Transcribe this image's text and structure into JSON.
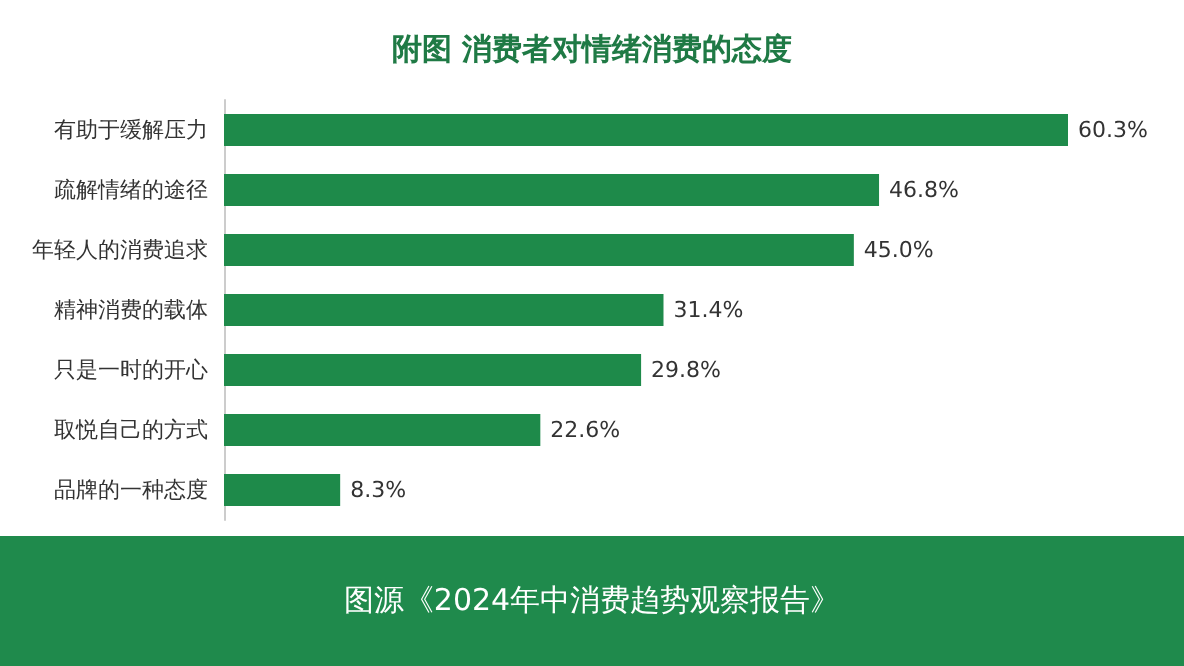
{
  "chart_data": {
    "type": "bar",
    "orientation": "horizontal",
    "tick_labels": "y",
    "title": "附图 消费者对情绪消费的态度",
    "categories": [
      "有助于缓解压力",
      "疏解情绪的途径",
      "年轻人的消费追求",
      "精神消费的载体",
      "只是一时的开心",
      "取悦自己的方式",
      "品牌的一种态度"
    ],
    "values": [
      60.3,
      46.8,
      45.0,
      31.4,
      29.8,
      22.6,
      8.3
    ],
    "value_labels": [
      "60.3%",
      "46.8%",
      "45.0%",
      "31.4%",
      "29.8%",
      "22.6%",
      "8.3%"
    ],
    "color": "#1e8a4a",
    "annotations": [
      "图源《2024年中消费趋势观察报告》"
    ]
  }
}
